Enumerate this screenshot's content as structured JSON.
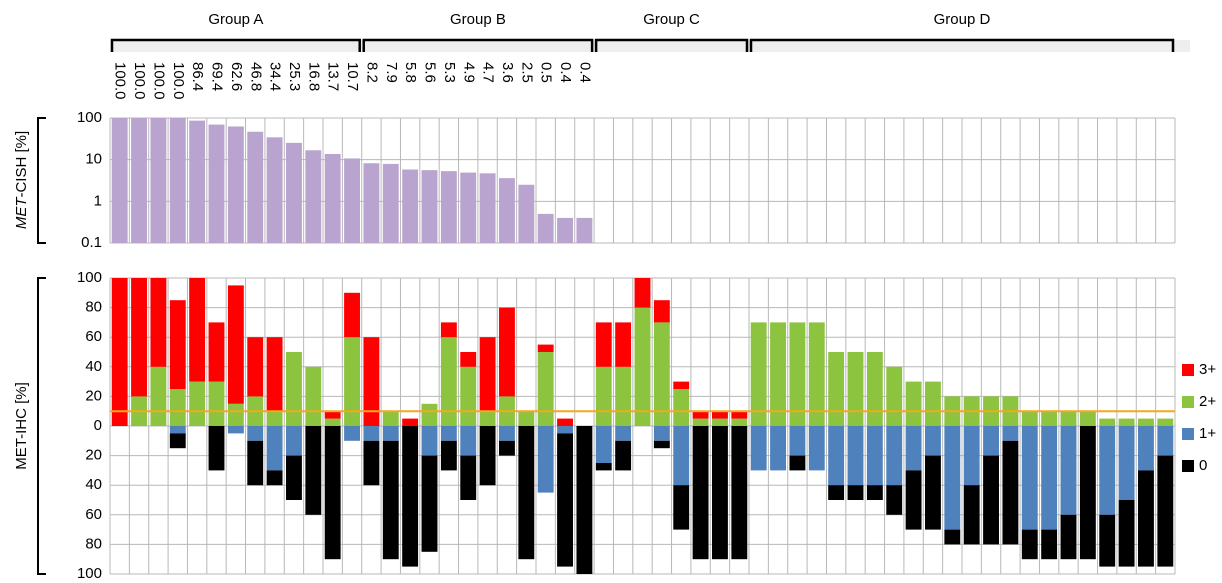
{
  "groups": [
    "Group A",
    "Group B",
    "Group C",
    "Group D"
  ],
  "chart_data": [
    {
      "type": "bar",
      "ylabel": [
        "MET",
        "-CISH [%]"
      ],
      "log_scale": true,
      "grid": true,
      "color": "#b9a3cf",
      "values": [
        100,
        100,
        100,
        100,
        86.4,
        69.4,
        62.6,
        46.8,
        34.4,
        25.3,
        16.8,
        13.7,
        10.7,
        8.2,
        7.9,
        5.8,
        5.6,
        5.3,
        4.9,
        4.7,
        3.6,
        2.5,
        0.5,
        0.4,
        0.4,
        null,
        null,
        null,
        null,
        null,
        null,
        null,
        null,
        null,
        null,
        null,
        null,
        null,
        null,
        null,
        null,
        null,
        null,
        null,
        null,
        null,
        null,
        null,
        null,
        null,
        null,
        null,
        null,
        null,
        null
      ],
      "value_labels": [
        "100.0",
        "100.0",
        "100.0",
        "100.0",
        "86.4",
        "69.4",
        "62.6",
        "46.8",
        "34.4",
        "25.3",
        "16.8",
        "13.7",
        "10.7",
        "8.2",
        "7.9",
        "5.8",
        "5.6",
        "5.3",
        "4.9",
        "4.7",
        "3.6",
        "2.5",
        "0.5",
        "0.4",
        "0.4",
        null,
        null,
        null,
        null,
        null,
        null,
        null,
        null,
        null,
        null,
        null,
        null,
        null,
        null,
        null,
        null,
        null,
        null,
        null,
        null,
        null,
        null,
        null,
        null,
        null,
        null,
        null,
        null,
        null,
        null
      ],
      "ylim": [
        0.1,
        100
      ],
      "yticks": [
        100,
        10,
        1,
        0.1
      ]
    },
    {
      "type": "diverging",
      "ylabel": "MET-IHC [%]",
      "grid": true,
      "threshold": 10,
      "threshold_color": "#f5a623",
      "legend": "right",
      "ylim": [
        -100,
        100
      ],
      "yticks": [
        100,
        80,
        60,
        40,
        20,
        0,
        {
          "value": -20,
          "label": "20"
        },
        {
          "value": -40,
          "label": "40"
        },
        {
          "value": -60,
          "label": "60"
        },
        {
          "value": -80,
          "label": "80"
        },
        {
          "value": -100,
          "label": "100"
        }
      ],
      "series": [
        {
          "name": "3+",
          "color": "#ff0000",
          "side": "up",
          "values": [
            100,
            80,
            60,
            60,
            70,
            40,
            80,
            40,
            50,
            0,
            0,
            5,
            30,
            60,
            0,
            5,
            0,
            10,
            10,
            50,
            60,
            0,
            5,
            5,
            0,
            30,
            30,
            20,
            15,
            5,
            5,
            5,
            5,
            0,
            0,
            0,
            0,
            0,
            0,
            0,
            0,
            0,
            0,
            0,
            0,
            0,
            0,
            0,
            0,
            0,
            0,
            0,
            0,
            0,
            0
          ]
        },
        {
          "name": "2+",
          "color": "#8cc43f",
          "side": "up",
          "values": [
            0,
            20,
            40,
            25,
            30,
            30,
            15,
            20,
            10,
            50,
            40,
            5,
            60,
            0,
            10,
            0,
            15,
            60,
            40,
            10,
            20,
            10,
            50,
            0,
            0,
            40,
            40,
            80,
            70,
            25,
            5,
            5,
            5,
            70,
            70,
            70,
            70,
            50,
            50,
            50,
            40,
            30,
            30,
            20,
            20,
            20,
            20,
            10,
            10,
            10,
            10,
            5,
            5,
            5,
            5
          ]
        },
        {
          "name": "1+",
          "color": "#4f81bd",
          "side": "down",
          "values": [
            0,
            0,
            0,
            5,
            0,
            0,
            5,
            10,
            30,
            20,
            0,
            0,
            10,
            10,
            10,
            0,
            20,
            10,
            20,
            0,
            10,
            0,
            45,
            5,
            0,
            25,
            10,
            0,
            10,
            40,
            0,
            0,
            0,
            30,
            30,
            20,
            30,
            40,
            40,
            40,
            40,
            30,
            20,
            70,
            40,
            20,
            10,
            70,
            70,
            60,
            0,
            60,
            50,
            30,
            20
          ]
        },
        {
          "name": "0",
          "color": "#000000",
          "side": "down",
          "values": [
            0,
            0,
            0,
            10,
            0,
            30,
            0,
            30,
            10,
            30,
            60,
            90,
            0,
            30,
            80,
            95,
            65,
            20,
            30,
            40,
            10,
            90,
            0,
            90,
            100,
            5,
            20,
            0,
            5,
            30,
            90,
            90,
            90,
            0,
            0,
            10,
            0,
            10,
            10,
            10,
            20,
            40,
            50,
            10,
            40,
            60,
            70,
            20,
            20,
            30,
            90,
            35,
            45,
            65,
            75
          ]
        }
      ]
    }
  ]
}
